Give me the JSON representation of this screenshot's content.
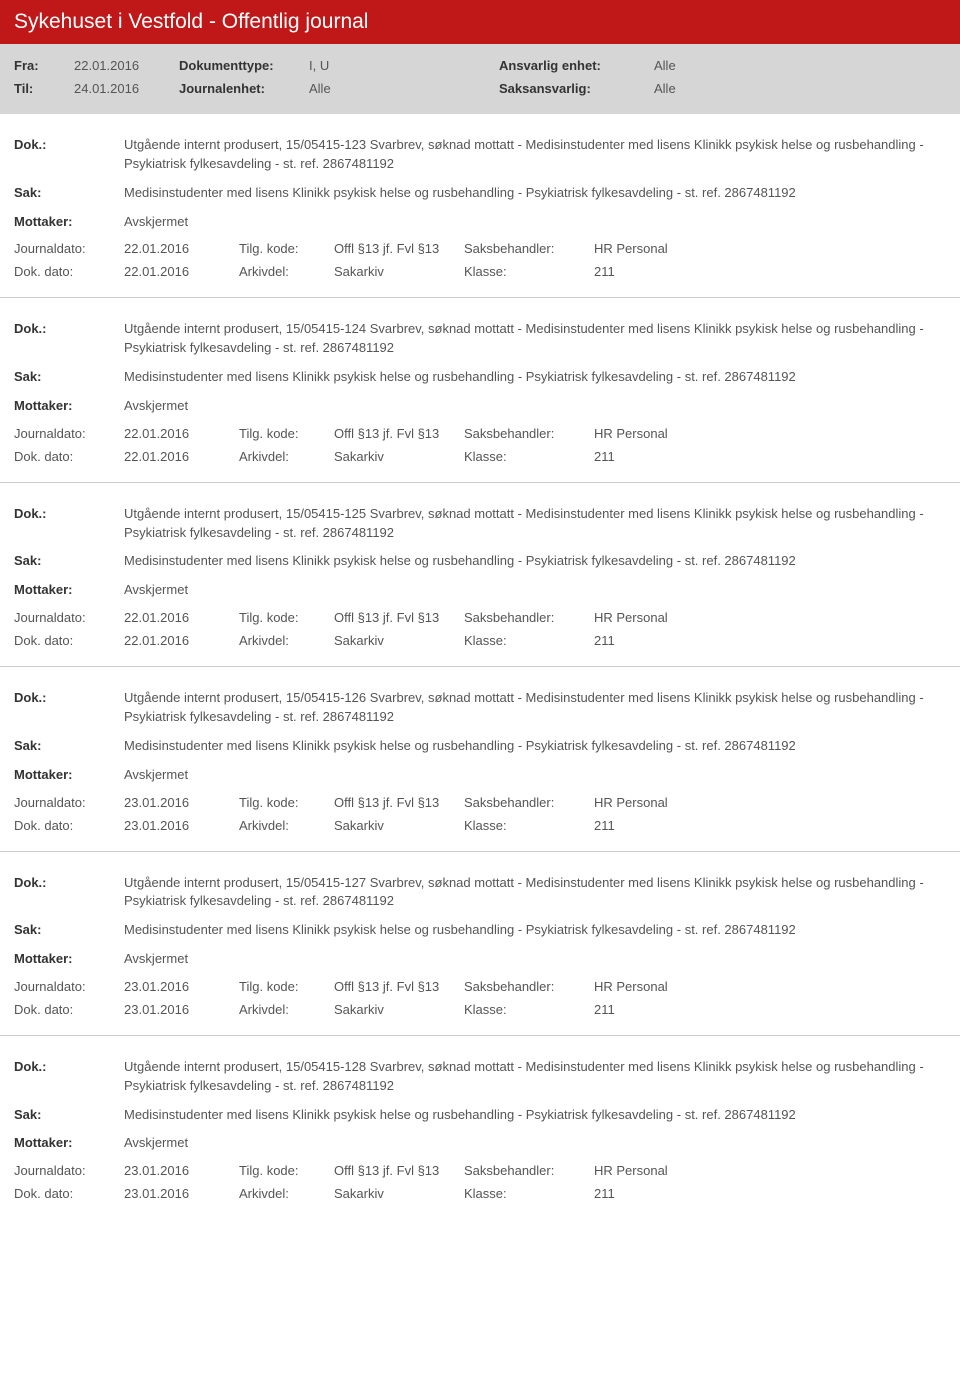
{
  "title": "Sykehuset i Vestfold - Offentlig journal",
  "header": {
    "fra_label": "Fra:",
    "fra_value": "22.01.2016",
    "til_label": "Til:",
    "til_value": "24.01.2016",
    "doktype_label": "Dokumenttype:",
    "doktype_value": "I, U",
    "journalenhet_label": "Journalenhet:",
    "journalenhet_value": "Alle",
    "ansvarlig_label": "Ansvarlig enhet:",
    "ansvarlig_value": "Alle",
    "saksansvarlig_label": "Saksansvarlig:",
    "saksansvarlig_value": "Alle"
  },
  "labels": {
    "dok": "Dok.:",
    "sak": "Sak:",
    "mottaker": "Mottaker:",
    "journaldato": "Journaldato:",
    "tilgkode": "Tilg. kode:",
    "saksbehandler": "Saksbehandler:",
    "dokdato": "Dok. dato:",
    "arkivdel": "Arkivdel:",
    "klasse": "Klasse:"
  },
  "entries": [
    {
      "dok": "Utgående internt produsert, 15/05415-123 Svarbrev, søknad mottatt - Medisinstudenter med lisens Klinikk psykisk helse og rusbehandling - Psykiatrisk fylkesavdeling - st. ref. 2867481192",
      "sak": "Medisinstudenter med lisens Klinikk psykisk helse og rusbehandling - Psykiatrisk fylkesavdeling - st. ref. 2867481192",
      "mottaker": "Avskjermet",
      "journaldato": "22.01.2016",
      "tilgkode": "Offl §13 jf. Fvl §13",
      "saksbehandler": "HR Personal",
      "dokdato": "22.01.2016",
      "arkivdel": "Sakarkiv",
      "klasse": "211"
    },
    {
      "dok": "Utgående internt produsert, 15/05415-124 Svarbrev, søknad mottatt - Medisinstudenter med lisens Klinikk psykisk helse og rusbehandling - Psykiatrisk fylkesavdeling - st. ref. 2867481192",
      "sak": "Medisinstudenter med lisens Klinikk psykisk helse og rusbehandling - Psykiatrisk fylkesavdeling - st. ref. 2867481192",
      "mottaker": "Avskjermet",
      "journaldato": "22.01.2016",
      "tilgkode": "Offl §13 jf. Fvl §13",
      "saksbehandler": "HR Personal",
      "dokdato": "22.01.2016",
      "arkivdel": "Sakarkiv",
      "klasse": "211"
    },
    {
      "dok": "Utgående internt produsert, 15/05415-125 Svarbrev, søknad mottatt - Medisinstudenter med lisens Klinikk psykisk helse og rusbehandling - Psykiatrisk fylkesavdeling - st. ref. 2867481192",
      "sak": "Medisinstudenter med lisens Klinikk psykisk helse og rusbehandling - Psykiatrisk fylkesavdeling - st. ref. 2867481192",
      "mottaker": "Avskjermet",
      "journaldato": "22.01.2016",
      "tilgkode": "Offl §13 jf. Fvl §13",
      "saksbehandler": "HR Personal",
      "dokdato": "22.01.2016",
      "arkivdel": "Sakarkiv",
      "klasse": "211"
    },
    {
      "dok": "Utgående internt produsert, 15/05415-126 Svarbrev, søknad mottatt - Medisinstudenter med lisens Klinikk psykisk helse og rusbehandling - Psykiatrisk fylkesavdeling - st. ref. 2867481192",
      "sak": "Medisinstudenter med lisens Klinikk psykisk helse og rusbehandling - Psykiatrisk fylkesavdeling - st. ref. 2867481192",
      "mottaker": "Avskjermet",
      "journaldato": "23.01.2016",
      "tilgkode": "Offl §13 jf. Fvl §13",
      "saksbehandler": "HR Personal",
      "dokdato": "23.01.2016",
      "arkivdel": "Sakarkiv",
      "klasse": "211"
    },
    {
      "dok": "Utgående internt produsert, 15/05415-127 Svarbrev, søknad mottatt - Medisinstudenter med lisens Klinikk psykisk helse og rusbehandling - Psykiatrisk fylkesavdeling - st. ref. 2867481192",
      "sak": "Medisinstudenter med lisens Klinikk psykisk helse og rusbehandling - Psykiatrisk fylkesavdeling - st. ref. 2867481192",
      "mottaker": "Avskjermet",
      "journaldato": "23.01.2016",
      "tilgkode": "Offl §13 jf. Fvl §13",
      "saksbehandler": "HR Personal",
      "dokdato": "23.01.2016",
      "arkivdel": "Sakarkiv",
      "klasse": "211"
    },
    {
      "dok": "Utgående internt produsert, 15/05415-128 Svarbrev, søknad mottatt - Medisinstudenter med lisens Klinikk psykisk helse og rusbehandling - Psykiatrisk fylkesavdeling - st. ref. 2867481192",
      "sak": "Medisinstudenter med lisens Klinikk psykisk helse og rusbehandling - Psykiatrisk fylkesavdeling - st. ref. 2867481192",
      "mottaker": "Avskjermet",
      "journaldato": "23.01.2016",
      "tilgkode": "Offl §13 jf. Fvl §13",
      "saksbehandler": "HR Personal",
      "dokdato": "23.01.2016",
      "arkivdel": "Sakarkiv",
      "klasse": "211"
    }
  ]
}
